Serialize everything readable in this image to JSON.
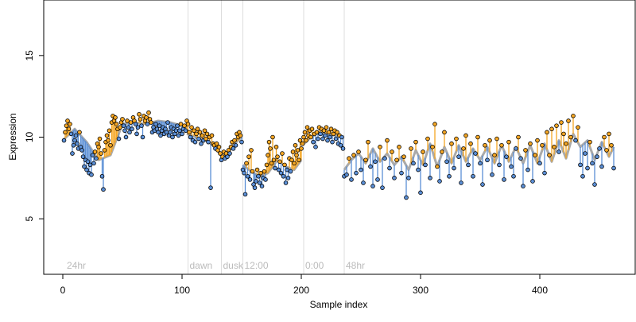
{
  "chart_data": {
    "type": "scatter",
    "title": "",
    "xlabel": "Sample index",
    "ylabel": "Expression",
    "xlim": [
      -16,
      480
    ],
    "ylim": [
      1.6,
      18.4
    ],
    "x_ticks": [
      0,
      100,
      200,
      300,
      400
    ],
    "y_ticks": [
      5,
      10,
      15
    ],
    "grid": false,
    "legend": "none",
    "phase_markers": [
      {
        "x": 2,
        "label": "24hr"
      },
      {
        "x": 105,
        "label": "dawn"
      },
      {
        "x": 133,
        "label": "dusk"
      },
      {
        "x": 151,
        "label": "12:00"
      },
      {
        "x": 202,
        "label": "0:00"
      },
      {
        "x": 236,
        "label": "48hr"
      }
    ],
    "colors": {
      "fit_line": "#aaaaaa",
      "residual_up": "#f5a623",
      "residual_down": "#5b8fd6",
      "point_fill_up": "#f5a623",
      "point_fill_down": "#5b8fd6",
      "marker_line": "#dddddd",
      "marker_text": "#bbbbbb"
    },
    "segments": [
      {
        "x": [
          0,
          10,
          20,
          30,
          40,
          50,
          60,
          70,
          80,
          90,
          100,
          104
        ],
        "y": [
          9.8,
          10.5,
          9.7,
          8.6,
          8.9,
          10.8,
          10.9,
          10.8,
          11.0,
          10.9,
          10.7,
          10.5
        ]
      },
      {
        "x": [
          104,
          112,
          120,
          128,
          132
        ],
        "y": [
          10.2,
          10.0,
          9.8,
          9.4,
          9.0
        ]
      },
      {
        "x": [
          132,
          138,
          144,
          150
        ],
        "y": [
          8.7,
          9.0,
          9.6,
          10.0
        ]
      },
      {
        "x": [
          151,
          158,
          165,
          172,
          180,
          187,
          194,
          200
        ],
        "y": [
          8.3,
          7.9,
          7.6,
          7.8,
          8.6,
          8.2,
          8.0,
          8.6
        ]
      },
      {
        "x": [
          201,
          208,
          215,
          222,
          229,
          235
        ],
        "y": [
          9.5,
          10.0,
          10.3,
          10.2,
          10.1,
          10.0
        ]
      },
      {
        "x": [
          236,
          242,
          248,
          254,
          260,
          266,
          272,
          278,
          284,
          290,
          296,
          302,
          308,
          314,
          320,
          326,
          332,
          338,
          344,
          350,
          356,
          362,
          368,
          374,
          380,
          386,
          392,
          398,
          404,
          410,
          416,
          422,
          428,
          434,
          440,
          446,
          452,
          458,
          462
        ],
        "y": [
          8.0,
          8.6,
          9.0,
          8.4,
          9.3,
          8.5,
          9.0,
          8.3,
          8.8,
          8.0,
          9.2,
          8.3,
          9.6,
          8.2,
          9.4,
          8.4,
          9.5,
          8.5,
          9.3,
          8.6,
          9.4,
          8.4,
          9.5,
          8.5,
          9.4,
          8.4,
          9.5,
          8.4,
          9.6,
          8.5,
          9.8,
          8.7,
          10.2,
          9.4,
          9.8,
          8.6,
          9.7,
          8.8,
          9.4
        ]
      }
    ],
    "points": [
      [
        1,
        9.8
      ],
      [
        2,
        10.3
      ],
      [
        3,
        10.7
      ],
      [
        4,
        11.0
      ],
      [
        5,
        10.5
      ],
      [
        6,
        10.8
      ],
      [
        7,
        10.2
      ],
      [
        8,
        9.0
      ],
      [
        9,
        9.5
      ],
      [
        10,
        9.8
      ],
      [
        11,
        10.1
      ],
      [
        12,
        9.6
      ],
      [
        13,
        9.3
      ],
      [
        14,
        10.3
      ],
      [
        15,
        9.4
      ],
      [
        16,
        9.2
      ],
      [
        17,
        8.8
      ],
      [
        18,
        8.2
      ],
      [
        19,
        8.6
      ],
      [
        20,
        8.0
      ],
      [
        21,
        8.5
      ],
      [
        22,
        7.8
      ],
      [
        23,
        8.3
      ],
      [
        24,
        7.7
      ],
      [
        25,
        8.9
      ],
      [
        26,
        8.4
      ],
      [
        27,
        9.1
      ],
      [
        28,
        8.7
      ],
      [
        29,
        9.6
      ],
      [
        30,
        9.4
      ],
      [
        31,
        9.9
      ],
      [
        32,
        9.0
      ],
      [
        33,
        7.6
      ],
      [
        34,
        6.8
      ],
      [
        35,
        9.2
      ],
      [
        36,
        9.7
      ],
      [
        37,
        10.1
      ],
      [
        38,
        9.8
      ],
      [
        39,
        10.4
      ],
      [
        40,
        9.5
      ],
      [
        41,
        10.9
      ],
      [
        42,
        11.3
      ],
      [
        43,
        11.0
      ],
      [
        44,
        11.2
      ],
      [
        45,
        10.8
      ],
      [
        46,
        10.5
      ],
      [
        47,
        9.9
      ],
      [
        48,
        10.6
      ],
      [
        49,
        10.9
      ],
      [
        50,
        11.1
      ],
      [
        51,
        10.7
      ],
      [
        52,
        10.4
      ],
      [
        53,
        10.0
      ],
      [
        54,
        11.0
      ],
      [
        55,
        10.6
      ],
      [
        56,
        10.3
      ],
      [
        57,
        10.9
      ],
      [
        58,
        10.5
      ],
      [
        59,
        11.2
      ],
      [
        60,
        11.0
      ],
      [
        61,
        10.8
      ],
      [
        62,
        10.2
      ],
      [
        63,
        10.6
      ],
      [
        64,
        11.4
      ],
      [
        65,
        11.1
      ],
      [
        66,
        10.7
      ],
      [
        67,
        10.0
      ],
      [
        68,
        11.3
      ],
      [
        69,
        11.0
      ],
      [
        70,
        11.2
      ],
      [
        71,
        10.8
      ],
      [
        72,
        11.5
      ],
      [
        73,
        11.1
      ],
      [
        74,
        10.9
      ],
      [
        75,
        10.3
      ],
      [
        76,
        10.6
      ],
      [
        77,
        10.4
      ],
      [
        78,
        10.8
      ],
      [
        79,
        10.5
      ],
      [
        80,
        10.3
      ],
      [
        81,
        10.7
      ],
      [
        82,
        10.1
      ],
      [
        83,
        10.4
      ],
      [
        84,
        10.6
      ],
      [
        85,
        10.2
      ],
      [
        86,
        10.5
      ],
      [
        87,
        10.3
      ],
      [
        88,
        10.9
      ],
      [
        89,
        10.1
      ],
      [
        90,
        10.3
      ],
      [
        91,
        10.6
      ],
      [
        92,
        10.0
      ],
      [
        93,
        10.5
      ],
      [
        94,
        10.2
      ],
      [
        95,
        10.4
      ],
      [
        96,
        10.7
      ],
      [
        97,
        10.1
      ],
      [
        98,
        10.4
      ],
      [
        99,
        10.8
      ],
      [
        100,
        10.2
      ],
      [
        101,
        10.5
      ],
      [
        102,
        10.7
      ],
      [
        103,
        10.4
      ],
      [
        104,
        11.0
      ],
      [
        105,
        10.8
      ],
      [
        106,
        10.3
      ],
      [
        107,
        10.0
      ],
      [
        108,
        10.6
      ],
      [
        109,
        9.8
      ],
      [
        110,
        10.4
      ],
      [
        111,
        9.7
      ],
      [
        112,
        10.2
      ],
      [
        113,
        10.5
      ],
      [
        114,
        9.9
      ],
      [
        115,
        10.3
      ],
      [
        116,
        9.6
      ],
      [
        117,
        10.1
      ],
      [
        118,
        9.8
      ],
      [
        119,
        10.4
      ],
      [
        120,
        9.9
      ],
      [
        121,
        10.2
      ],
      [
        122,
        9.7
      ],
      [
        123,
        10.0
      ],
      [
        124,
        6.9
      ],
      [
        125,
        10.1
      ],
      [
        126,
        9.6
      ],
      [
        127,
        9.5
      ],
      [
        128,
        9.3
      ],
      [
        129,
        9.6
      ],
      [
        130,
        9.2
      ],
      [
        131,
        9.4
      ],
      [
        132,
        9.0
      ],
      [
        133,
        8.6
      ],
      [
        134,
        8.8
      ],
      [
        135,
        9.1
      ],
      [
        136,
        8.7
      ],
      [
        137,
        9.0
      ],
      [
        138,
        8.8
      ],
      [
        139,
        9.2
      ],
      [
        140,
        9.0
      ],
      [
        141,
        9.4
      ],
      [
        142,
        9.7
      ],
      [
        143,
        9.3
      ],
      [
        144,
        9.8
      ],
      [
        145,
        9.5
      ],
      [
        146,
        10.2
      ],
      [
        147,
        10.0
      ],
      [
        148,
        10.3
      ],
      [
        149,
        10.1
      ],
      [
        150,
        9.7
      ],
      [
        151,
        8.0
      ],
      [
        152,
        7.8
      ],
      [
        153,
        6.5
      ],
      [
        154,
        8.4
      ],
      [
        155,
        7.6
      ],
      [
        156,
        8.8
      ],
      [
        157,
        7.4
      ],
      [
        158,
        9.2
      ],
      [
        159,
        7.9
      ],
      [
        160,
        7.1
      ],
      [
        161,
        6.9
      ],
      [
        162,
        7.3
      ],
      [
        163,
        8.0
      ],
      [
        164,
        7.6
      ],
      [
        165,
        7.2
      ],
      [
        166,
        7.8
      ],
      [
        167,
        7.0
      ],
      [
        168,
        7.5
      ],
      [
        169,
        7.9
      ],
      [
        170,
        7.4
      ],
      [
        171,
        8.3
      ],
      [
        172,
        8.9
      ],
      [
        173,
        9.7
      ],
      [
        174,
        9.3
      ],
      [
        175,
        8.4
      ],
      [
        176,
        10.0
      ],
      [
        177,
        8.6
      ],
      [
        178,
        8.1
      ],
      [
        179,
        9.4
      ],
      [
        180,
        8.8
      ],
      [
        181,
        8.0
      ],
      [
        182,
        8.5
      ],
      [
        183,
        7.8
      ],
      [
        184,
        9.0
      ],
      [
        185,
        7.6
      ],
      [
        186,
        8.3
      ],
      [
        187,
        7.2
      ],
      [
        188,
        8.0
      ],
      [
        189,
        7.5
      ],
      [
        190,
        8.7
      ],
      [
        191,
        7.9
      ],
      [
        192,
        8.6
      ],
      [
        193,
        9.1
      ],
      [
        194,
        8.4
      ],
      [
        195,
        9.5
      ],
      [
        196,
        8.9
      ],
      [
        197,
        9.2
      ],
      [
        198,
        8.6
      ],
      [
        199,
        9.8
      ],
      [
        200,
        9.3
      ],
      [
        201,
        9.6
      ],
      [
        202,
        10.0
      ],
      [
        203,
        10.3
      ],
      [
        204,
        9.8
      ],
      [
        205,
        10.6
      ],
      [
        206,
        10.1
      ],
      [
        207,
        10.4
      ],
      [
        208,
        10.0
      ],
      [
        209,
        10.5
      ],
      [
        210,
        9.7
      ],
      [
        211,
        10.2
      ],
      [
        212,
        9.4
      ],
      [
        213,
        10.3
      ],
      [
        214,
        9.9
      ],
      [
        215,
        10.6
      ],
      [
        216,
        10.2
      ],
      [
        217,
        10.5
      ],
      [
        218,
        9.9
      ],
      [
        219,
        10.4
      ],
      [
        220,
        10.1
      ],
      [
        221,
        10.6
      ],
      [
        222,
        9.8
      ],
      [
        223,
        10.3
      ],
      [
        224,
        10.0
      ],
      [
        225,
        10.5
      ],
      [
        226,
        9.7
      ],
      [
        227,
        10.2
      ],
      [
        228,
        10.4
      ],
      [
        229,
        9.9
      ],
      [
        230,
        10.3
      ],
      [
        231,
        9.6
      ],
      [
        232,
        10.1
      ],
      [
        233,
        9.5
      ],
      [
        234,
        10.0
      ],
      [
        235,
        9.3
      ],
      [
        236,
        7.6
      ],
      [
        238,
        7.7
      ],
      [
        240,
        8.7
      ],
      [
        242,
        7.4
      ],
      [
        244,
        8.9
      ],
      [
        246,
        7.8
      ],
      [
        248,
        9.1
      ],
      [
        250,
        8.0
      ],
      [
        252,
        7.2
      ],
      [
        254,
        8.6
      ],
      [
        256,
        9.7
      ],
      [
        258,
        8.2
      ],
      [
        260,
        7.0
      ],
      [
        262,
        8.5
      ],
      [
        264,
        7.4
      ],
      [
        266,
        9.4
      ],
      [
        268,
        6.9
      ],
      [
        270,
        8.7
      ],
      [
        272,
        9.8
      ],
      [
        274,
        8.1
      ],
      [
        276,
        9.1
      ],
      [
        278,
        7.5
      ],
      [
        280,
        8.6
      ],
      [
        282,
        9.4
      ],
      [
        284,
        7.8
      ],
      [
        286,
        8.8
      ],
      [
        288,
        6.3
      ],
      [
        290,
        7.5
      ],
      [
        292,
        9.3
      ],
      [
        294,
        8.4
      ],
      [
        296,
        9.7
      ],
      [
        298,
        8.0
      ],
      [
        300,
        6.6
      ],
      [
        302,
        9.1
      ],
      [
        304,
        8.3
      ],
      [
        306,
        9.9
      ],
      [
        308,
        7.5
      ],
      [
        310,
        9.4
      ],
      [
        312,
        10.8
      ],
      [
        314,
        8.2
      ],
      [
        316,
        7.3
      ],
      [
        318,
        9.1
      ],
      [
        320,
        10.3
      ],
      [
        322,
        8.5
      ],
      [
        324,
        7.6
      ],
      [
        326,
        9.6
      ],
      [
        328,
        8.1
      ],
      [
        330,
        9.9
      ],
      [
        332,
        8.8
      ],
      [
        334,
        7.2
      ],
      [
        336,
        9.3
      ],
      [
        338,
        10.1
      ],
      [
        340,
        8.3
      ],
      [
        342,
        9.6
      ],
      [
        344,
        7.6
      ],
      [
        346,
        9.0
      ],
      [
        348,
        10.0
      ],
      [
        350,
        8.4
      ],
      [
        352,
        7.1
      ],
      [
        354,
        9.5
      ],
      [
        356,
        8.6
      ],
      [
        358,
        9.8
      ],
      [
        360,
        7.7
      ],
      [
        362,
        8.9
      ],
      [
        364,
        9.9
      ],
      [
        366,
        8.3
      ],
      [
        368,
        9.5
      ],
      [
        370,
        7.4
      ],
      [
        372,
        8.8
      ],
      [
        374,
        9.7
      ],
      [
        376,
        8.2
      ],
      [
        378,
        7.6
      ],
      [
        380,
        9.3
      ],
      [
        382,
        10.0
      ],
      [
        384,
        8.7
      ],
      [
        386,
        7.0
      ],
      [
        388,
        9.2
      ],
      [
        390,
        8.0
      ],
      [
        392,
        9.6
      ],
      [
        394,
        7.3
      ],
      [
        396,
        8.9
      ],
      [
        398,
        9.8
      ],
      [
        400,
        8.4
      ],
      [
        402,
        9.5
      ],
      [
        404,
        7.8
      ],
      [
        406,
        10.3
      ],
      [
        408,
        8.9
      ],
      [
        410,
        10.5
      ],
      [
        412,
        9.4
      ],
      [
        414,
        10.7
      ],
      [
        416,
        9.1
      ],
      [
        418,
        10.9
      ],
      [
        420,
        10.2
      ],
      [
        422,
        9.6
      ],
      [
        424,
        11.0
      ],
      [
        426,
        10.0
      ],
      [
        428,
        11.3
      ],
      [
        430,
        9.8
      ],
      [
        432,
        10.6
      ],
      [
        434,
        8.3
      ],
      [
        436,
        7.6
      ],
      [
        438,
        9.0
      ],
      [
        440,
        8.1
      ],
      [
        442,
        9.7
      ],
      [
        444,
        8.4
      ],
      [
        446,
        7.1
      ],
      [
        448,
        8.8
      ],
      [
        450,
        9.3
      ],
      [
        452,
        8.2
      ],
      [
        454,
        10.0
      ],
      [
        456,
        9.2
      ],
      [
        458,
        10.2
      ],
      [
        460,
        9.5
      ],
      [
        462,
        8.1
      ]
    ]
  }
}
